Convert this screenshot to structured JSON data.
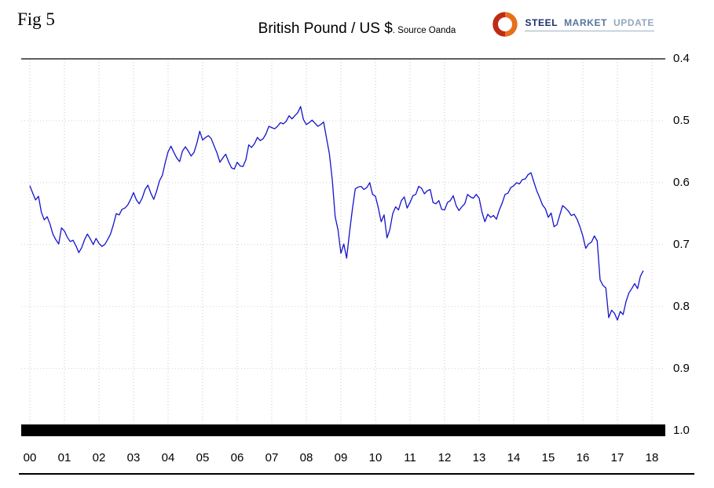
{
  "header": {
    "fig_label": "Fig 5",
    "title": "British Pound / US $",
    "source_note": ". Source Oanda"
  },
  "logo": {
    "words": [
      {
        "text": "STEEL",
        "color": "#17316e"
      },
      {
        "text": "MARKET",
        "color": "#54759e"
      },
      {
        "text": "UPDATE",
        "color": "#93a7c0"
      }
    ]
  },
  "chart_data": {
    "type": "line",
    "title": "British Pound / US $",
    "source": "Oanda",
    "series_name": "British Pound per US Dollar",
    "line_color": "#1414cd",
    "x_start_year": 2000.0,
    "x_step_years": 0.0833333,
    "x_tick_labels": [
      "00",
      "01",
      "02",
      "03",
      "04",
      "05",
      "06",
      "07",
      "08",
      "09",
      "10",
      "11",
      "12",
      "13",
      "14",
      "15",
      "16",
      "17",
      "18"
    ],
    "y_ticks": [
      0.4,
      0.5,
      0.6,
      0.7,
      0.8,
      0.9,
      1.0
    ],
    "ylim": [
      0.4,
      1.0
    ],
    "y_axis_position": "right",
    "y_axis_direction": "inverted (0.4 at top, 1.0 at bottom)",
    "grid": "dotted",
    "legend": "none",
    "values": [
      0.605,
      0.617,
      0.628,
      0.622,
      0.648,
      0.66,
      0.655,
      0.667,
      0.683,
      0.692,
      0.699,
      0.673,
      0.678,
      0.688,
      0.695,
      0.693,
      0.702,
      0.713,
      0.705,
      0.692,
      0.683,
      0.691,
      0.7,
      0.69,
      0.698,
      0.703,
      0.7,
      0.692,
      0.683,
      0.668,
      0.65,
      0.652,
      0.643,
      0.641,
      0.636,
      0.627,
      0.616,
      0.628,
      0.634,
      0.625,
      0.611,
      0.604,
      0.617,
      0.627,
      0.614,
      0.597,
      0.588,
      0.568,
      0.55,
      0.541,
      0.551,
      0.56,
      0.566,
      0.549,
      0.542,
      0.549,
      0.557,
      0.551,
      0.536,
      0.517,
      0.531,
      0.527,
      0.524,
      0.529,
      0.541,
      0.552,
      0.567,
      0.56,
      0.554,
      0.566,
      0.576,
      0.578,
      0.567,
      0.573,
      0.574,
      0.563,
      0.539,
      0.543,
      0.537,
      0.527,
      0.532,
      0.529,
      0.521,
      0.509,
      0.511,
      0.513,
      0.509,
      0.503,
      0.505,
      0.501,
      0.492,
      0.497,
      0.492,
      0.487,
      0.477,
      0.498,
      0.506,
      0.503,
      0.499,
      0.504,
      0.509,
      0.506,
      0.502,
      0.528,
      0.553,
      0.595,
      0.655,
      0.676,
      0.714,
      0.699,
      0.722,
      0.68,
      0.642,
      0.61,
      0.607,
      0.606,
      0.611,
      0.608,
      0.6,
      0.619,
      0.622,
      0.641,
      0.663,
      0.652,
      0.689,
      0.676,
      0.65,
      0.639,
      0.644,
      0.629,
      0.623,
      0.641,
      0.632,
      0.621,
      0.619,
      0.606,
      0.609,
      0.618,
      0.613,
      0.611,
      0.632,
      0.634,
      0.629,
      0.643,
      0.644,
      0.632,
      0.629,
      0.621,
      0.637,
      0.645,
      0.639,
      0.634,
      0.619,
      0.623,
      0.625,
      0.619,
      0.625,
      0.648,
      0.663,
      0.651,
      0.656,
      0.653,
      0.659,
      0.644,
      0.633,
      0.619,
      0.617,
      0.608,
      0.605,
      0.6,
      0.602,
      0.595,
      0.594,
      0.587,
      0.584,
      0.599,
      0.613,
      0.624,
      0.636,
      0.642,
      0.656,
      0.649,
      0.671,
      0.668,
      0.652,
      0.637,
      0.641,
      0.646,
      0.653,
      0.651,
      0.659,
      0.671,
      0.686,
      0.706,
      0.699,
      0.696,
      0.686,
      0.694,
      0.757,
      0.766,
      0.77,
      0.818,
      0.806,
      0.811,
      0.822,
      0.808,
      0.813,
      0.792,
      0.778,
      0.771,
      0.763,
      0.771,
      0.751,
      0.742
    ]
  }
}
